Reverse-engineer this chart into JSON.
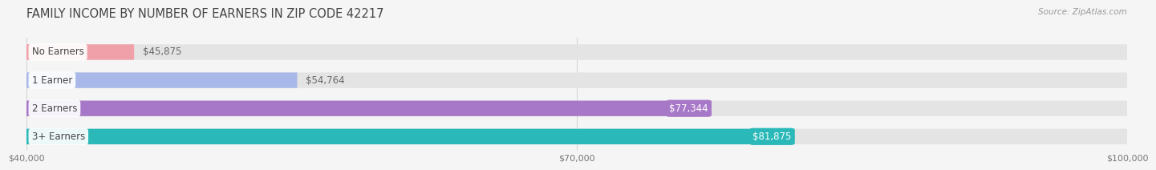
{
  "title": "FAMILY INCOME BY NUMBER OF EARNERS IN ZIP CODE 42217",
  "source": "Source: ZipAtlas.com",
  "categories": [
    "No Earners",
    "1 Earner",
    "2 Earners",
    "3+ Earners"
  ],
  "values": [
    45875,
    54764,
    77344,
    81875
  ],
  "bar_colors": [
    "#f0a0a8",
    "#a8b8e8",
    "#a878c8",
    "#2ab8b8"
  ],
  "label_bg_colors": [
    "#f0a0a8",
    "#a8b8e8",
    "#a878c8",
    "#2ab8b8"
  ],
  "value_label_colors": [
    "#888888",
    "#888888",
    "#ffffff",
    "#ffffff"
  ],
  "xlim_min": 40000,
  "xlim_max": 100000,
  "xticks": [
    40000,
    70000,
    100000
  ],
  "xtick_labels": [
    "$40,000",
    "$70,000",
    "$100,000"
  ],
  "background_color": "#f5f5f5",
  "bar_background": "#e4e4e4",
  "title_fontsize": 10.5,
  "source_fontsize": 7.5,
  "label_fontsize": 8.5,
  "category_fontsize": 8.5,
  "tick_fontsize": 8
}
